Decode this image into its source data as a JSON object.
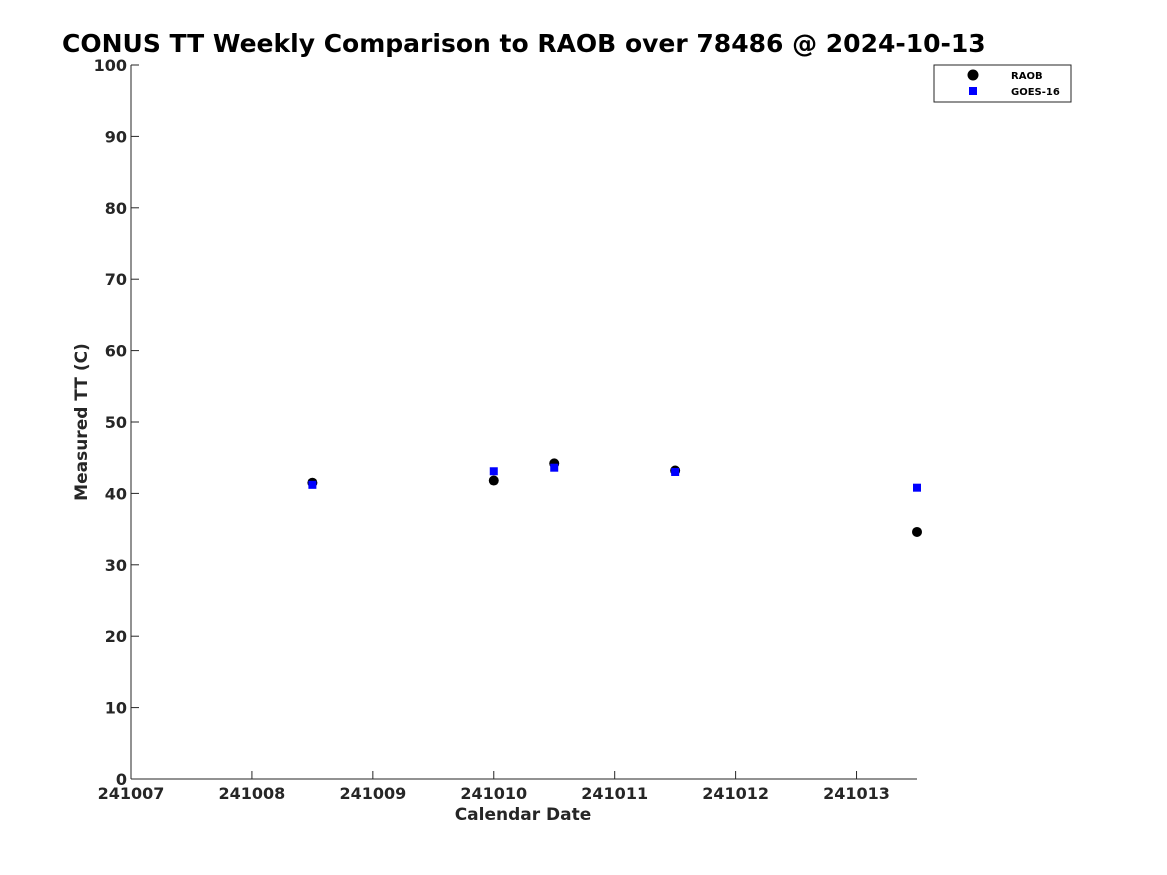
{
  "chart_data": {
    "type": "scatter",
    "title": "CONUS TT Weekly Comparison to RAOB over 78486 @ 2024-10-13",
    "xlabel": "Calendar Date",
    "ylabel": "Measured TT (C)",
    "xlim": [
      241007,
      241013.5
    ],
    "ylim": [
      0,
      100
    ],
    "x_ticks": [
      241007,
      241008,
      241009,
      241010,
      241011,
      241012,
      241013
    ],
    "x_tick_labels": [
      "241007",
      "241008",
      "241009",
      "241010",
      "241011",
      "241012",
      "241013"
    ],
    "y_ticks": [
      0,
      10,
      20,
      30,
      40,
      50,
      60,
      70,
      80,
      90,
      100
    ],
    "y_tick_labels": [
      "0",
      "10",
      "20",
      "30",
      "40",
      "50",
      "60",
      "70",
      "80",
      "90",
      "100"
    ],
    "grid": false,
    "legend_position": "top-right",
    "series": [
      {
        "name": "RAOB",
        "marker": "circle",
        "color": "#000000",
        "points": [
          {
            "x": 241008.5,
            "y": 41.5
          },
          {
            "x": 241010.0,
            "y": 41.8
          },
          {
            "x": 241010.5,
            "y": 44.2
          },
          {
            "x": 241011.5,
            "y": 43.2
          },
          {
            "x": 241013.5,
            "y": 34.6
          }
        ]
      },
      {
        "name": "GOES-16",
        "marker": "square",
        "color": "#0000ff",
        "points": [
          {
            "x": 241008.5,
            "y": 41.2
          },
          {
            "x": 241010.0,
            "y": 43.1
          },
          {
            "x": 241010.5,
            "y": 43.6
          },
          {
            "x": 241011.5,
            "y": 43.0
          },
          {
            "x": 241013.5,
            "y": 40.8
          }
        ]
      }
    ]
  }
}
